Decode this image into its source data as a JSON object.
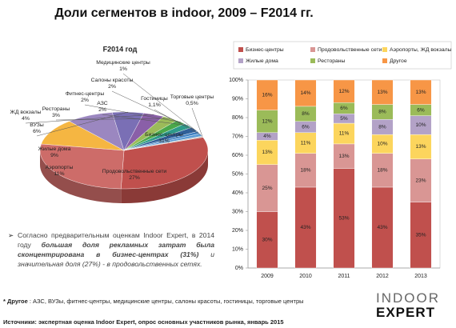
{
  "title": "Доли сегментов в indoor, 2009 – F2014 гг.",
  "chart_data": [
    {
      "type": "pie",
      "title": "F2014 год",
      "categories": [
        "Бизнес-центры",
        "Продовольственные сети",
        "Аэропорты",
        "Жилые дома",
        "ВУЗы",
        "ЖД вокзалы",
        "Рестораны",
        "Фитнес-центры",
        "АЗС",
        "Салоны красоты",
        "Медицинские центры",
        "Гостиницы",
        "Торговые центры"
      ],
      "values": [
        31,
        27,
        11,
        9,
        6,
        4,
        3,
        2,
        2,
        2,
        1,
        1.1,
        0.5
      ],
      "value_labels": [
        "31%",
        "27%",
        "11%",
        "9%",
        "6%",
        "4%",
        "3%",
        "2%",
        "2%",
        "2%",
        "1%",
        "1,1%",
        "0,5%"
      ],
      "colors": [
        "#c0504d",
        "#cd6c69",
        "#f5b642",
        "#9b87c0",
        "#7a6fb5",
        "#8a5fa8",
        "#9bbb59",
        "#4aa84a",
        "#2e9b8a",
        "#2f5f98",
        "#3e7fc1",
        "#5a9bd5",
        "#c5c5c5"
      ]
    },
    {
      "type": "stacked_bar",
      "categories": [
        "2009",
        "2010",
        "2011",
        "2012",
        "2013"
      ],
      "series": [
        {
          "name": "Бизнес-центры",
          "color": "#c0504d",
          "values": [
            30,
            43,
            53,
            43,
            35
          ],
          "value_labels": [
            "30%",
            "43%",
            "53%",
            "43%",
            "35%"
          ]
        },
        {
          "name": "Продовольственные сети",
          "color": "#d99694",
          "values": [
            25,
            18,
            13,
            18,
            23
          ],
          "value_labels": [
            "25%",
            "18%",
            "13%",
            "18%",
            "23%"
          ]
        },
        {
          "name": "Аэропорты, ЖД вокзалы",
          "color": "#fcd55d",
          "values": [
            13,
            11,
            11,
            10,
            13
          ],
          "value_labels": [
            "13%",
            "11%",
            "11%",
            "10%",
            "13%"
          ]
        },
        {
          "name": "Жилые дома",
          "color": "#b3a2c7",
          "values": [
            4,
            6,
            5,
            8,
            10
          ],
          "value_labels": [
            "4%",
            "6%",
            "5%",
            "8%",
            "10%"
          ]
        },
        {
          "name": "Рестораны",
          "color": "#9bbb59",
          "values": [
            12,
            8,
            6,
            8,
            6
          ],
          "value_labels": [
            "12%",
            "8%",
            "6%",
            "8%",
            "6%"
          ]
        },
        {
          "name": "Другое",
          "color": "#f79646",
          "values": [
            16,
            14,
            12,
            13,
            13
          ],
          "value_labels": [
            "16%",
            "14%",
            "12%",
            "13%",
            "13%"
          ]
        }
      ],
      "ylim": [
        0,
        100
      ],
      "yticks": [
        {
          "value": 0,
          "label": "0%"
        },
        {
          "value": 10,
          "label": "10%"
        },
        {
          "value": 20,
          "label": "20%"
        },
        {
          "value": 30,
          "label": "30%"
        },
        {
          "value": 40,
          "label": "40%"
        },
        {
          "value": 50,
          "label": "50%"
        },
        {
          "value": 60,
          "label": "60%"
        },
        {
          "value": 70,
          "label": "70%"
        },
        {
          "value": 80,
          "label": "80%"
        },
        {
          "value": 90,
          "label": "90%"
        },
        {
          "value": 100,
          "label": "100%"
        }
      ],
      "grid": false,
      "legend": "top"
    }
  ],
  "bullet": [
    {
      "text": "Согласно предварительным оценкам Indoor Expert, в 2014 году ",
      "style": "normal"
    },
    {
      "text": "большая доля рекламных затрат была сконцентрирована в бизнес-центрах (31%)",
      "style": "bold-italic"
    },
    {
      "text": " и значительная доля (27%) - в продовольственных сетях.",
      "style": "italic"
    }
  ],
  "footnote": {
    "label": "* Другое",
    "text": " : АЗС, ВУЗы, фитнес-центры, медицинские центры, салоны красоты, гостиницы, торговые центры"
  },
  "source": "Источники: экспертная оценка Indoor Expert, опрос основных участников рынка, январь 2015",
  "logo": {
    "top": "INDOOR",
    "bottom": "EXPERT"
  }
}
